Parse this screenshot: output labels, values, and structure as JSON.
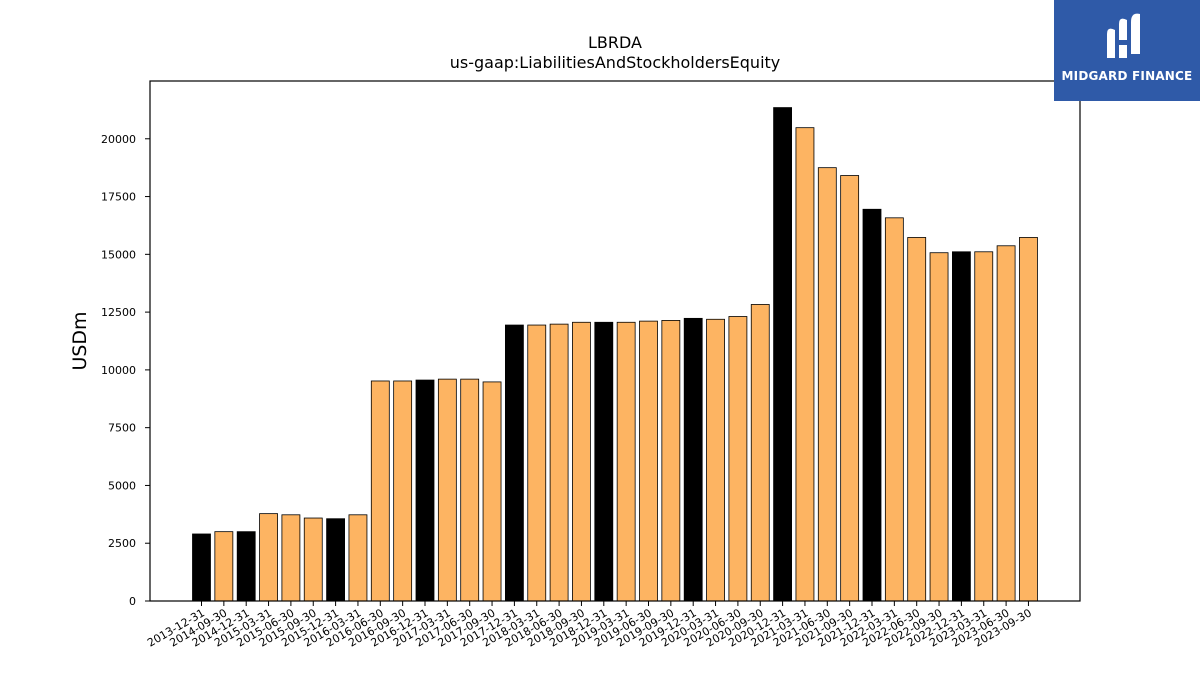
{
  "chart_data": {
    "type": "bar",
    "title": "LBRDA",
    "subtitle": "us-gaap:LiabilitiesAndStockholdersEquity",
    "ylabel": "USDm",
    "xlabel": "",
    "ylim": [
      0,
      22500
    ],
    "yticks": [
      0,
      2500,
      5000,
      7500,
      10000,
      12500,
      15000,
      17500,
      20000
    ],
    "grid": false,
    "colors": {
      "annual": "#000000",
      "quarterly": "#fdb462",
      "edge": "#000000"
    },
    "categories": [
      "2013-12-31",
      "2014-09-30",
      "2014-12-31",
      "2015-03-31",
      "2015-06-30",
      "2015-09-30",
      "2015-12-31",
      "2016-03-31",
      "2016-06-30",
      "2016-09-30",
      "2016-12-31",
      "2017-03-31",
      "2017-06-30",
      "2017-09-30",
      "2017-12-31",
      "2018-03-31",
      "2018-06-30",
      "2018-09-30",
      "2018-12-31",
      "2019-03-31",
      "2019-06-30",
      "2019-09-30",
      "2019-12-31",
      "2020-03-31",
      "2020-06-30",
      "2020-09-30",
      "2020-12-31",
      "2021-03-31",
      "2021-06-30",
      "2021-09-30",
      "2021-12-31",
      "2022-03-31",
      "2022-06-30",
      "2022-09-30",
      "2022-12-31",
      "2023-03-31",
      "2023-06-30",
      "2023-09-30"
    ],
    "values": [
      2900,
      3000,
      3000,
      3780,
      3730,
      3590,
      3560,
      3730,
      9520,
      9520,
      9560,
      9600,
      9600,
      9480,
      11940,
      11940,
      11980,
      12060,
      12060,
      12060,
      12110,
      12140,
      12230,
      12190,
      12310,
      12830,
      21350,
      20480,
      18750,
      18410,
      16950,
      16580,
      15730,
      15070,
      15110,
      15110,
      15370,
      15730
    ],
    "annual": [
      true,
      false,
      true,
      false,
      false,
      false,
      true,
      false,
      false,
      false,
      true,
      false,
      false,
      false,
      true,
      false,
      false,
      false,
      true,
      false,
      false,
      false,
      true,
      false,
      false,
      false,
      true,
      false,
      false,
      false,
      true,
      false,
      false,
      false,
      true,
      false,
      false,
      false
    ]
  },
  "logo": {
    "text": "MIDGARD FINANCE",
    "background": "#2f5aa8"
  }
}
